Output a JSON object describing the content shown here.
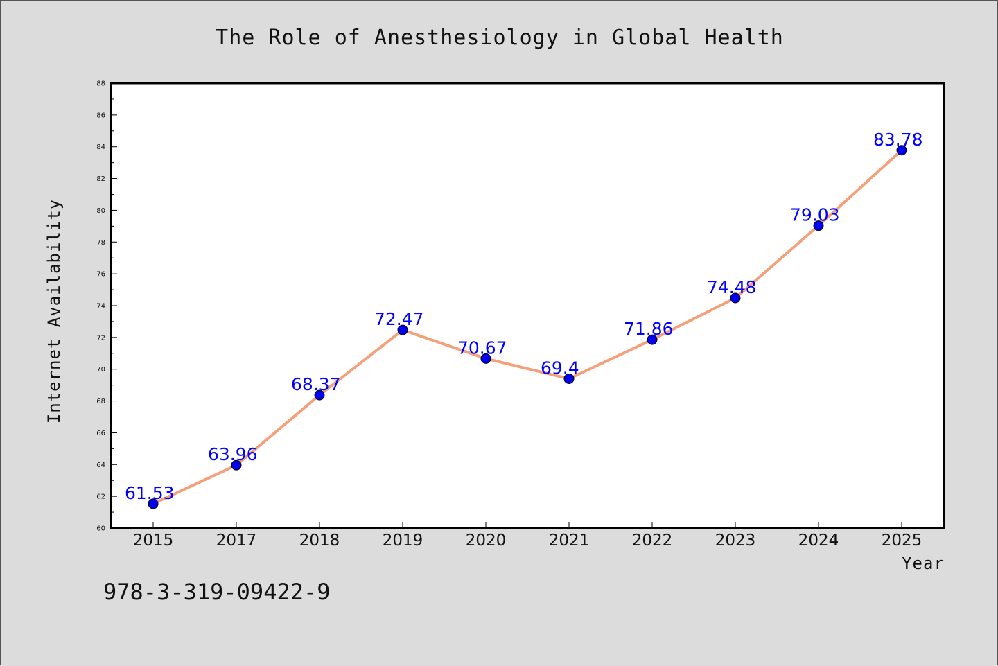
{
  "chart_data": {
    "type": "line",
    "title": "The Role of Anesthesiology in Global Health",
    "xlabel": "Year",
    "ylabel": "Internet Availability",
    "categories": [
      "2015",
      "2017",
      "2018",
      "2019",
      "2020",
      "2021",
      "2022",
      "2023",
      "2024",
      "2025"
    ],
    "series": [
      {
        "values": [
          61.53,
          63.96,
          68.37,
          72.47,
          70.67,
          69.4,
          71.86,
          74.48,
          79.03,
          83.78
        ],
        "data_labels": [
          "61.53",
          "63.96",
          "68.37",
          "72.47",
          "70.67",
          "69.4",
          "71.86",
          "74.48",
          "79.03",
          "83.78"
        ],
        "line_color": "#f4a07a",
        "marker_color": "#0000ee"
      }
    ],
    "ylim": [
      60,
      88
    ],
    "yticks": [
      "60",
      "62",
      "64",
      "66",
      "68",
      "70",
      "72",
      "74",
      "76",
      "78",
      "80",
      "82",
      "84",
      "86",
      "88"
    ],
    "grid": false,
    "legend": "none",
    "data_label_color": "#0000ff"
  },
  "footer": {
    "isbn": "978-3-319-09422-9"
  },
  "colors": {
    "background": "#dcdcdc",
    "plot_background": "#ffffff"
  }
}
